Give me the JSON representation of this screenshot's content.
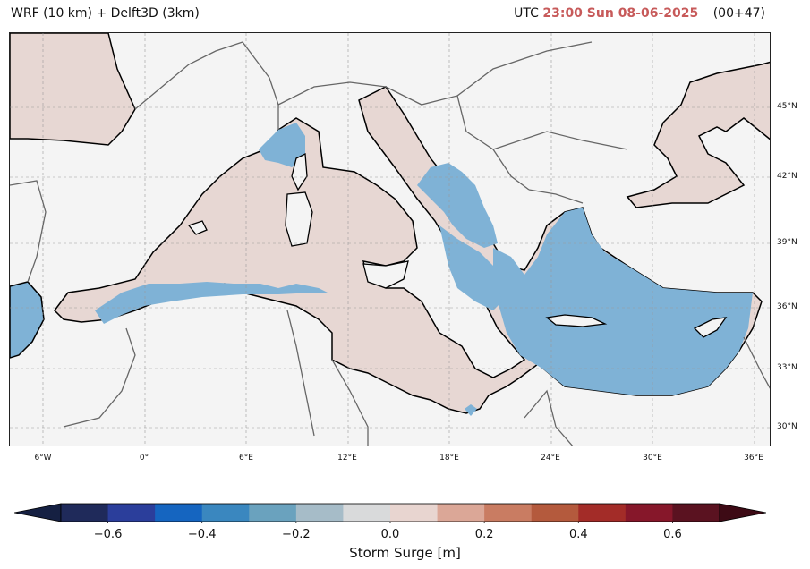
{
  "header": {
    "model_title": "WRF (10 km) + Delft3D (3km)",
    "utc_prefix": "UTC",
    "valid_time": "23:00 Sun 08-06-2025",
    "lead_time": "(00+47)"
  },
  "map": {
    "region": "Mediterranean Sea",
    "lon_range": [
      -8,
      37
    ],
    "lat_range": [
      28.8,
      49.5
    ],
    "lon_ticks": [
      "6°W",
      "0°",
      "6°E",
      "12°E",
      "18°E",
      "24°E",
      "30°E",
      "36°E"
    ],
    "lat_ticks": [
      "45°N",
      "42°N",
      "39°N",
      "36°N",
      "33°N",
      "30°N"
    ],
    "gridlines": true,
    "colors": {
      "land": "#f4f4f4",
      "positive_surge": "#e7d7d3",
      "negative_surge": "#7fb2d6",
      "coastline": "#000000",
      "borders": "#666666"
    }
  },
  "colorbar": {
    "label": "Storm Surge [m]",
    "ticks": [
      "−0.6",
      "−0.4",
      "−0.2",
      "0.0",
      "0.2",
      "0.4",
      "0.6"
    ],
    "tick_values": [
      -0.6,
      -0.4,
      -0.2,
      0.0,
      0.2,
      0.4,
      0.6
    ],
    "bins": [
      -0.7,
      -0.6,
      -0.5,
      -0.4,
      -0.3,
      -0.2,
      -0.1,
      0.0,
      0.1,
      0.2,
      0.3,
      0.4,
      0.5,
      0.6,
      0.7
    ],
    "colors": [
      "#1f2a5a",
      "#2b3e9b",
      "#1565c0",
      "#3a87bf",
      "#6aa2be",
      "#a6bcc8",
      "#d9dadb",
      "#e8d5d0",
      "#dba797",
      "#c97c62",
      "#b45a3d",
      "#a32c28",
      "#86172a",
      "#5a1220"
    ],
    "under_color": "#152042",
    "over_color": "#3d0a15",
    "extend": "both"
  }
}
